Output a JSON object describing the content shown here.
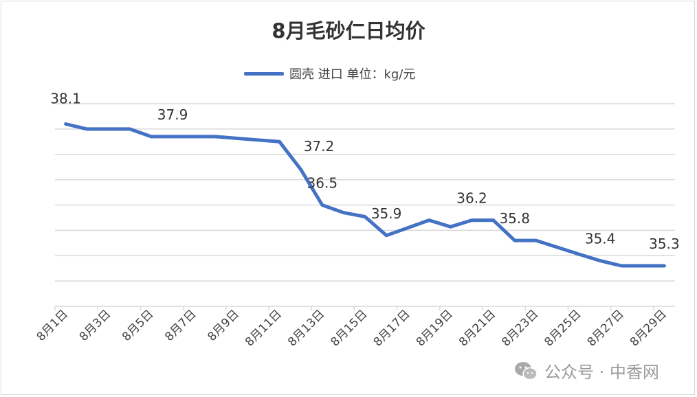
{
  "chart_data": {
    "type": "line",
    "title": "8月毛砂仁日均价",
    "legend": {
      "position": "top",
      "entries": [
        "圆壳 进口 单位：kg/元"
      ]
    },
    "series": [
      {
        "name": "圆壳 进口 单位：kg/元",
        "color": "#4472c4",
        "points": [
          {
            "x": "8月1日",
            "y": 38.1
          },
          {
            "x": "8月2日",
            "y": 38.0
          },
          {
            "x": "8月3日",
            "y": 38.0
          },
          {
            "x": "8月4日",
            "y": 38.0
          },
          {
            "x": "8月5日",
            "y": 37.85
          },
          {
            "x": "8月6日",
            "y": 37.85
          },
          {
            "x": "8月7日",
            "y": 37.85
          },
          {
            "x": "8月8日",
            "y": 37.85
          },
          {
            "x": "8月11日",
            "y": 37.75
          },
          {
            "x": "8月12日",
            "y": 37.2
          },
          {
            "x": "8月13日",
            "y": 36.5
          },
          {
            "x": "8月14日",
            "y": 36.35
          },
          {
            "x": "8月15日",
            "y": 36.27
          },
          {
            "x": "8月16日",
            "y": 35.9
          },
          {
            "x": "8月18日",
            "y": 36.2
          },
          {
            "x": "8月19日",
            "y": 36.07
          },
          {
            "x": "8月20日",
            "y": 36.2
          },
          {
            "x": "8月21日",
            "y": 36.2
          },
          {
            "x": "8月22日",
            "y": 35.8
          },
          {
            "x": "8月23日",
            "y": 35.8
          },
          {
            "x": "8月25日",
            "y": 35.53
          },
          {
            "x": "8月26日",
            "y": 35.4
          },
          {
            "x": "8月27日",
            "y": 35.3
          },
          {
            "x": "8月28日",
            "y": 35.3
          },
          {
            "x": "8月29日",
            "y": 35.3
          }
        ]
      }
    ],
    "data_labels": [
      {
        "x": "8月1日",
        "text": "38.1",
        "position": "above"
      },
      {
        "x": "8月6日",
        "text": "37.9",
        "position": "above"
      },
      {
        "x": "8月12日",
        "text": "37.2",
        "position": "right"
      },
      {
        "x": "8月13日",
        "text": "36.5",
        "position": "above"
      },
      {
        "x": "8月16日",
        "text": "35.9",
        "position": "above"
      },
      {
        "x": "8月20日",
        "text": "36.2",
        "position": "above"
      },
      {
        "x": "8月22日",
        "text": "35.8",
        "position": "above"
      },
      {
        "x": "8月26日",
        "text": "35.4",
        "position": "above"
      },
      {
        "x": "8月29日",
        "text": "35.3",
        "position": "above"
      }
    ],
    "categories": [
      "8月1日",
      "8月2日",
      "8月3日",
      "8月4日",
      "8月5日",
      "8月6日",
      "8月7日",
      "8月8日",
      "8月9日",
      "8月10日",
      "8月11日",
      "8月12日",
      "8月13日",
      "8月14日",
      "8月15日",
      "8月16日",
      "8月17日",
      "8月18日",
      "8月19日",
      "8月20日",
      "8月21日",
      "8月22日",
      "8月23日",
      "8月24日",
      "8月25日",
      "8月26日",
      "8月27日",
      "8月28日",
      "8月29日"
    ],
    "x_tick_labels": [
      "8月1日",
      "8月3日",
      "8月5日",
      "8月7日",
      "8月9日",
      "8月11日",
      "8月13日",
      "8月15日",
      "8月17日",
      "8月19日",
      "8月21日",
      "8月23日",
      "8月25日",
      "8月27日",
      "8月29日"
    ],
    "ylim": [
      34.5,
      38.5
    ],
    "y_gridlines": [
      34.5,
      35,
      35.5,
      36,
      36.5,
      37,
      37.5,
      38,
      38.5
    ],
    "y_axis_labels_shown": false,
    "grid": true,
    "xlabel": "",
    "ylabel": ""
  },
  "watermark": {
    "text": "公众号 · 中香网",
    "icon": "wechat-icon"
  }
}
